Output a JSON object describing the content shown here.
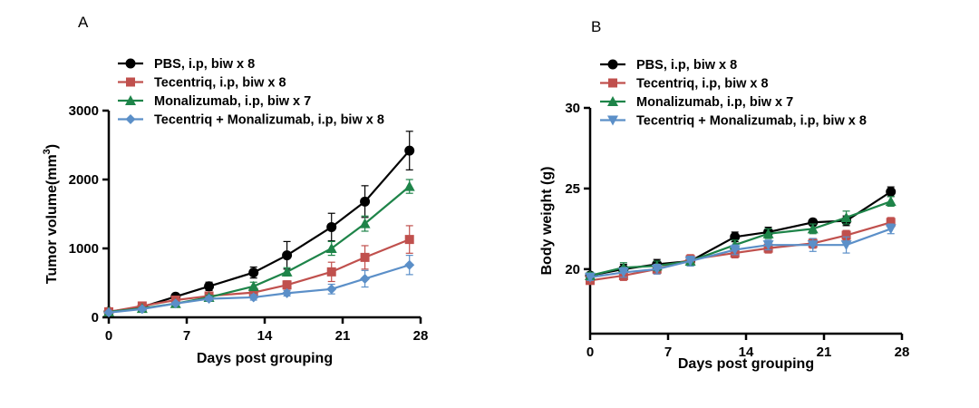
{
  "chart_data": [
    {
      "panel": "A",
      "type": "line",
      "xlabel": "Days post grouping",
      "ylabel": "Tumor volume(mm³)",
      "ylabel_main": "Tumor volume(mm",
      "ylabel_sup": "3",
      "ylabel_end": ")",
      "xlim": [
        0,
        28
      ],
      "ylim": [
        0,
        3000
      ],
      "xticks": [
        0,
        7,
        14,
        21,
        28
      ],
      "yticks": [
        0,
        1000,
        2000,
        3000
      ],
      "grid": false,
      "legend_position": "top-left",
      "series": [
        {
          "name": "PBS, i.p, biw x 8",
          "color": "#000000",
          "marker": "circle",
          "points": [
            [
              0,
              80,
              10
            ],
            [
              3,
              150,
              20
            ],
            [
              6,
              300,
              25
            ],
            [
              9,
              450,
              60
            ],
            [
              13,
              650,
              80
            ],
            [
              16,
              900,
              200
            ],
            [
              20,
              1310,
              200
            ],
            [
              23,
              1680,
              230
            ],
            [
              27,
              2420,
              280
            ]
          ]
        },
        {
          "name": "Tecentriq, i.p, biw x 8",
          "color": "#c0504d",
          "marker": "square",
          "points": [
            [
              0,
              80,
              10
            ],
            [
              3,
              165,
              20
            ],
            [
              6,
              250,
              25
            ],
            [
              9,
              310,
              40
            ],
            [
              13,
              360,
              50
            ],
            [
              16,
              470,
              60
            ],
            [
              20,
              660,
              140
            ],
            [
              23,
              870,
              170
            ],
            [
              27,
              1130,
              200
            ]
          ]
        },
        {
          "name": "Monalizumab, i.p, biw x 7",
          "color": "#1e8449",
          "marker": "triangle",
          "points": [
            [
              0,
              80,
              10
            ],
            [
              3,
              130,
              20
            ],
            [
              6,
              200,
              20
            ],
            [
              9,
              290,
              30
            ],
            [
              13,
              450,
              60
            ],
            [
              16,
              660,
              60
            ],
            [
              20,
              1000,
              100
            ],
            [
              23,
              1360,
              110
            ],
            [
              27,
              1900,
              100
            ]
          ]
        },
        {
          "name": "Tecentriq + Monalizumab, i.p, biw x 8",
          "color": "#5b8fc8",
          "marker": "diamond",
          "points": [
            [
              0,
              70,
              10
            ],
            [
              3,
              120,
              20
            ],
            [
              6,
              200,
              20
            ],
            [
              9,
              270,
              30
            ],
            [
              13,
              290,
              40
            ],
            [
              16,
              350,
              40
            ],
            [
              20,
              410,
              70
            ],
            [
              23,
              560,
              120
            ],
            [
              27,
              760,
              140
            ]
          ]
        }
      ]
    },
    {
      "panel": "B",
      "type": "line",
      "xlabel": "Days post grouping",
      "ylabel": "Body weight (g)",
      "xlim": [
        0,
        28
      ],
      "ylim": [
        16,
        30
      ],
      "xticks": [
        0,
        7,
        14,
        21,
        28
      ],
      "yticks": [
        20,
        25,
        30
      ],
      "grid": false,
      "legend_position": "top-left",
      "series": [
        {
          "name": "PBS, i.p, biw x 8",
          "color": "#000000",
          "marker": "circle",
          "points": [
            [
              0,
              19.6,
              0.2
            ],
            [
              3,
              20.0,
              0.3
            ],
            [
              6,
              20.3,
              0.3
            ],
            [
              9,
              20.5,
              0.3
            ],
            [
              13,
              22.0,
              0.3
            ],
            [
              16,
              22.3,
              0.3
            ],
            [
              20,
              22.9,
              0.2
            ],
            [
              23,
              23.0,
              0.3
            ],
            [
              27,
              24.8,
              0.3
            ]
          ]
        },
        {
          "name": "Tecentriq, i.p, biw x 8",
          "color": "#c0504d",
          "marker": "square",
          "points": [
            [
              0,
              19.3,
              0.2
            ],
            [
              3,
              19.6,
              0.3
            ],
            [
              6,
              20.0,
              0.3
            ],
            [
              9,
              20.6,
              0.3
            ],
            [
              13,
              21.0,
              0.3
            ],
            [
              16,
              21.3,
              0.3
            ],
            [
              20,
              21.6,
              0.3
            ],
            [
              23,
              22.1,
              0.3
            ],
            [
              27,
              22.9,
              0.3
            ]
          ]
        },
        {
          "name": "Monalizumab, i.p, biw x 7",
          "color": "#1e8449",
          "marker": "triangle",
          "points": [
            [
              0,
              19.6,
              0.2
            ],
            [
              3,
              20.1,
              0.3
            ],
            [
              6,
              20.2,
              0.3
            ],
            [
              9,
              20.5,
              0.3
            ],
            [
              13,
              21.5,
              0.3
            ],
            [
              16,
              22.2,
              0.3
            ],
            [
              20,
              22.5,
              0.3
            ],
            [
              23,
              23.2,
              0.4
            ],
            [
              27,
              24.2,
              0.3
            ]
          ]
        },
        {
          "name": "Tecentriq + Monalizumab, i.p, biw x 8",
          "color": "#5b8fc8",
          "marker": "invtriangle",
          "points": [
            [
              0,
              19.5,
              0.2
            ],
            [
              3,
              19.8,
              0.3
            ],
            [
              6,
              20.0,
              0.3
            ],
            [
              9,
              20.5,
              0.3
            ],
            [
              13,
              21.2,
              0.3
            ],
            [
              16,
              21.5,
              0.3
            ],
            [
              20,
              21.5,
              0.4
            ],
            [
              23,
              21.5,
              0.5
            ],
            [
              27,
              22.5,
              0.3
            ]
          ]
        }
      ]
    }
  ]
}
